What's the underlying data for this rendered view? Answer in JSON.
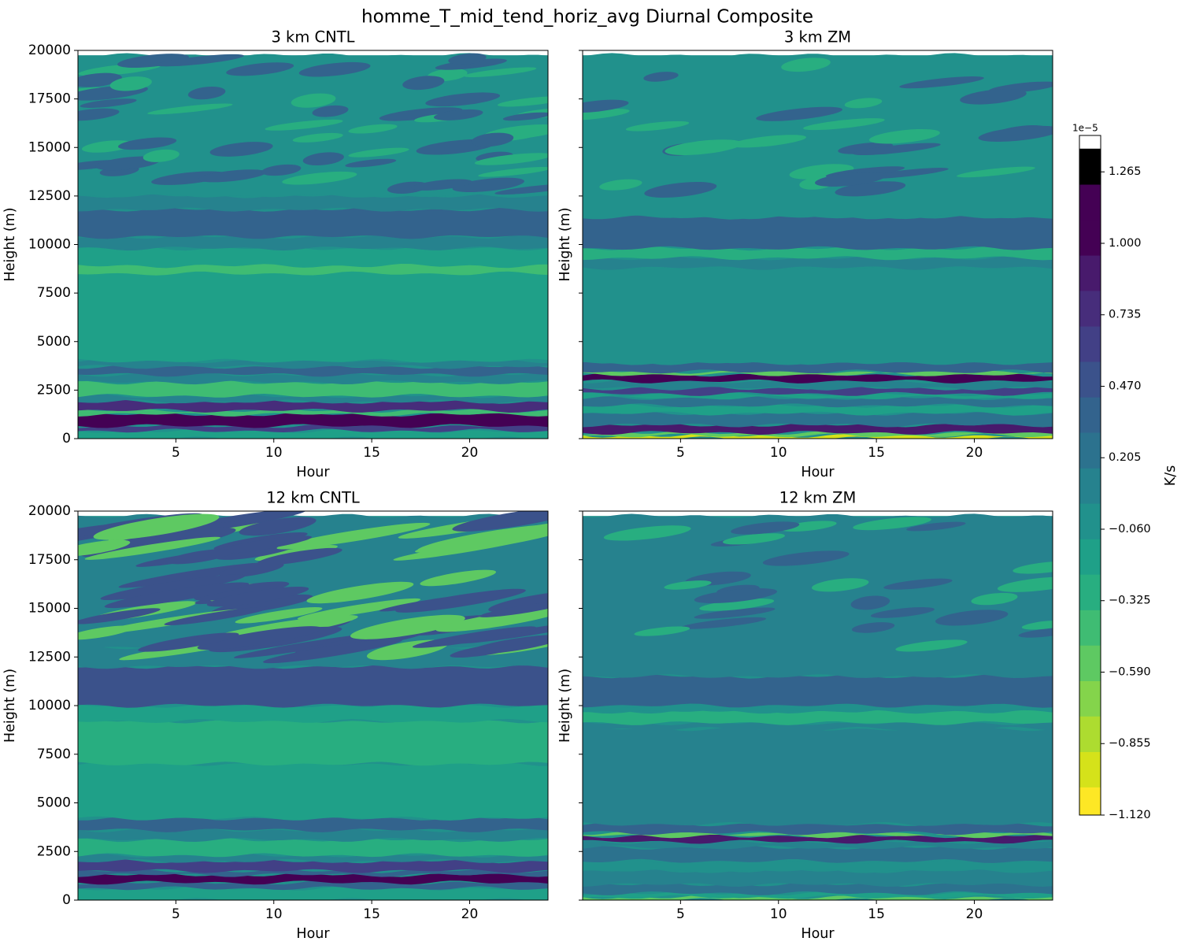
{
  "figure_title": "homme_T_mid_tend_horiz_avg Diurnal Composite",
  "chart_data": [
    {
      "type": "heatmap",
      "title": "3 km CNTL",
      "xlabel": "Hour",
      "ylabel": "Height (m)",
      "xlim": [
        0,
        24
      ],
      "ylim": [
        0,
        20000
      ],
      "x_ticks": [
        5,
        10,
        15,
        20
      ],
      "y_ticks": [
        0,
        2500,
        5000,
        7500,
        10000,
        12500,
        15000,
        17500,
        20000
      ],
      "data_top": 19750,
      "layers": [
        {
          "from": 0,
          "to": 400,
          "level": -0.2
        },
        {
          "from": 400,
          "to": 650,
          "level": 0.6
        },
        {
          "from": 650,
          "to": 1250,
          "level": 1.1
        },
        {
          "from": 1250,
          "to": 1450,
          "level": -0.4
        },
        {
          "from": 1450,
          "to": 1900,
          "level": 0.7
        },
        {
          "from": 1900,
          "to": 2200,
          "level": 0.1
        },
        {
          "from": 2200,
          "to": 2900,
          "level": -0.4
        },
        {
          "from": 2900,
          "to": 3300,
          "level": 0.1
        },
        {
          "from": 3300,
          "to": 3700,
          "level": 0.4
        },
        {
          "from": 3700,
          "to": 4000,
          "level": 0.1
        },
        {
          "from": 4000,
          "to": 9800,
          "level": -0.2
        },
        {
          "from": 8500,
          "to": 8900,
          "level": -0.4
        },
        {
          "from": 9800,
          "to": 10400,
          "level": 0.1
        },
        {
          "from": 10400,
          "to": 11800,
          "level": 0.4
        },
        {
          "from": 11800,
          "to": 12500,
          "level": 0.1
        },
        {
          "from": 12500,
          "to": 19750,
          "level": -0.05
        }
      ]
    },
    {
      "type": "heatmap",
      "title": "3 km ZM",
      "xlabel": "Hour",
      "ylabel": "Height (m)",
      "xlim": [
        0,
        24
      ],
      "ylim": [
        0,
        20000
      ],
      "x_ticks": [
        5,
        10,
        15,
        20
      ],
      "y_ticks": [
        0,
        2500,
        5000,
        7500,
        10000,
        12500,
        15000,
        17500,
        20000
      ],
      "data_top": 19750,
      "layers": [
        {
          "from": 0,
          "to": 150,
          "level": -1.0
        },
        {
          "from": 150,
          "to": 300,
          "level": -0.5
        },
        {
          "from": 300,
          "to": 700,
          "level": 0.9
        },
        {
          "from": 700,
          "to": 1300,
          "level": 0.2
        },
        {
          "from": 1300,
          "to": 1700,
          "level": -0.1
        },
        {
          "from": 1700,
          "to": 2100,
          "level": 0.2
        },
        {
          "from": 2100,
          "to": 2300,
          "level": -0.2
        },
        {
          "from": 2300,
          "to": 2600,
          "level": 0.6
        },
        {
          "from": 2600,
          "to": 2950,
          "level": 0.1
        },
        {
          "from": 2950,
          "to": 3300,
          "level": 1.0
        },
        {
          "from": 3300,
          "to": 3450,
          "level": -0.6
        },
        {
          "from": 3450,
          "to": 3900,
          "level": 0.3
        },
        {
          "from": 3900,
          "to": 8800,
          "level": -0.05
        },
        {
          "from": 8800,
          "to": 9300,
          "level": 0.1
        },
        {
          "from": 9300,
          "to": 9800,
          "level": -0.25
        },
        {
          "from": 9800,
          "to": 11400,
          "level": 0.3
        },
        {
          "from": 11400,
          "to": 19750,
          "level": -0.05
        }
      ]
    },
    {
      "type": "heatmap",
      "title": "12 km CNTL",
      "xlabel": "Hour",
      "ylabel": "Height (m)",
      "xlim": [
        0,
        24
      ],
      "ylim": [
        0,
        20000
      ],
      "x_ticks": [
        5,
        10,
        15,
        20
      ],
      "y_ticks": [
        0,
        2500,
        5000,
        7500,
        10000,
        12500,
        15000,
        17500,
        20000
      ],
      "data_top": 19750,
      "layers": [
        {
          "from": 0,
          "to": 600,
          "level": -0.1
        },
        {
          "from": 600,
          "to": 900,
          "level": 0.4
        },
        {
          "from": 900,
          "to": 1300,
          "level": 1.2
        },
        {
          "from": 1300,
          "to": 1500,
          "level": 0.3
        },
        {
          "from": 1500,
          "to": 2000,
          "level": 0.6
        },
        {
          "from": 2000,
          "to": 2300,
          "level": 0.1
        },
        {
          "from": 2300,
          "to": 3100,
          "level": -0.35
        },
        {
          "from": 3100,
          "to": 3600,
          "level": 0.1
        },
        {
          "from": 3600,
          "to": 4200,
          "level": 0.3
        },
        {
          "from": 4200,
          "to": 7000,
          "level": -0.15
        },
        {
          "from": 7000,
          "to": 9200,
          "level": -0.35
        },
        {
          "from": 9200,
          "to": 10000,
          "level": -0.1
        },
        {
          "from": 10000,
          "to": 12000,
          "level": 0.45
        },
        {
          "from": 12000,
          "to": 13000,
          "level": 0.1
        },
        {
          "from": 13000,
          "to": 19750,
          "level": 0.05
        }
      ]
    },
    {
      "type": "heatmap",
      "title": "12 km ZM",
      "xlabel": "Hour",
      "ylabel": "Height (m)",
      "xlim": [
        0,
        24
      ],
      "ylim": [
        0,
        20000
      ],
      "x_ticks": [
        5,
        10,
        15,
        20
      ],
      "y_ticks": [
        0,
        2500,
        5000,
        7500,
        10000,
        12500,
        15000,
        17500,
        20000
      ],
      "data_top": 19750,
      "layers": [
        {
          "from": 0,
          "to": 150,
          "level": -0.6
        },
        {
          "from": 150,
          "to": 350,
          "level": -0.2
        },
        {
          "from": 350,
          "to": 800,
          "level": 0.2
        },
        {
          "from": 800,
          "to": 1500,
          "level": 0.1
        },
        {
          "from": 1500,
          "to": 2000,
          "level": -0.05
        },
        {
          "from": 2000,
          "to": 2700,
          "level": 0.2
        },
        {
          "from": 2700,
          "to": 3000,
          "level": 0.1
        },
        {
          "from": 3000,
          "to": 3300,
          "level": 0.9
        },
        {
          "from": 3300,
          "to": 3450,
          "level": -0.5
        },
        {
          "from": 3450,
          "to": 3900,
          "level": 0.3
        },
        {
          "from": 3900,
          "to": 8800,
          "level": 0.05
        },
        {
          "from": 8800,
          "to": 9100,
          "level": 0.1
        },
        {
          "from": 9100,
          "to": 9700,
          "level": -0.25
        },
        {
          "from": 9700,
          "to": 10000,
          "level": -0.05
        },
        {
          "from": 10000,
          "to": 11500,
          "level": 0.35
        },
        {
          "from": 11500,
          "to": 19750,
          "level": 0.05
        }
      ]
    }
  ],
  "colorbar": {
    "label": "K/s",
    "offset_text": "1e−5",
    "vmin": -1.12,
    "vmax": 1.4,
    "levels": [
      -1.12,
      -1.016,
      -0.885,
      -0.753,
      -0.622,
      -0.49,
      -0.359,
      -0.227,
      -0.096,
      0.036,
      0.167,
      0.299,
      0.43,
      0.562,
      0.693,
      0.825,
      0.956,
      1.088,
      1.219,
      1.351
    ],
    "tick_values": [
      -1.12,
      -0.855,
      -0.59,
      -0.325,
      -0.06,
      0.205,
      0.47,
      0.735,
      1.0,
      1.265
    ],
    "tick_labels": [
      "−1.120",
      "−0.855",
      "−0.590",
      "−0.325",
      "−0.060",
      "0.205",
      "0.470",
      "0.735",
      "1.000",
      "1.265"
    ],
    "colors": [
      "#fde725",
      "#d5e21a",
      "#addc30",
      "#84d44b",
      "#5ec962",
      "#3fbc73",
      "#28ae80",
      "#1fa088",
      "#21918c",
      "#26828e",
      "#2c728e",
      "#33638d",
      "#3b528b",
      "#424086",
      "#472d7b",
      "#481a6c",
      "#440154",
      "#440154"
    ]
  }
}
